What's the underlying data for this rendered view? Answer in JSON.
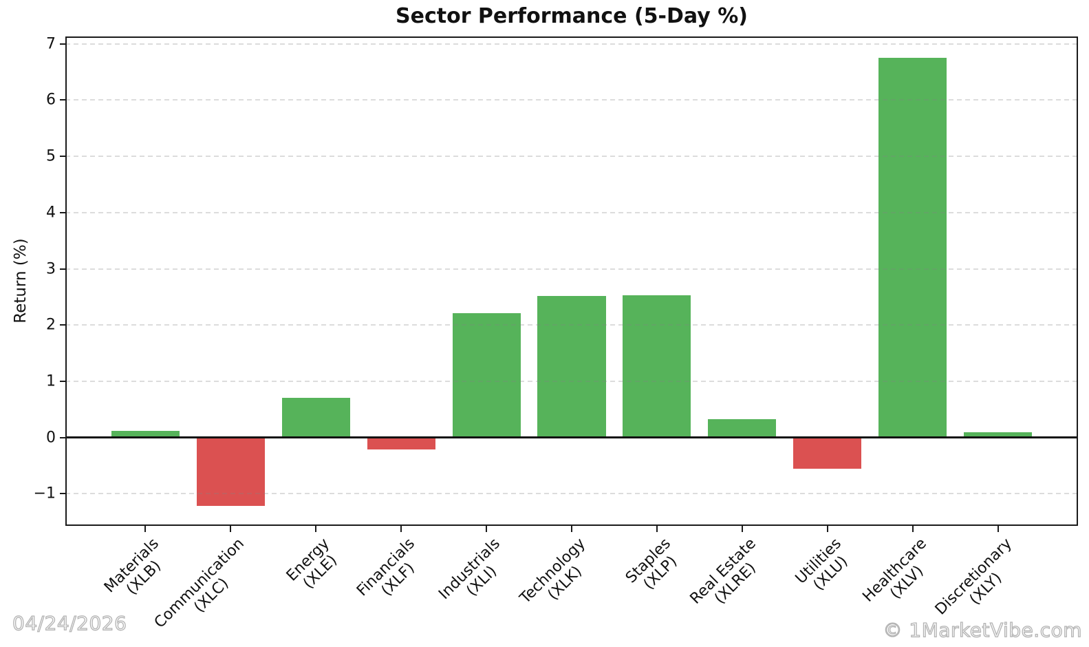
{
  "title": "Sector Performance (5-Day %)",
  "ylabel": "Return (%)",
  "footer": {
    "date": "04/24/2026",
    "credit": "© 1MarketVibe.com"
  },
  "chart_data": {
    "type": "bar",
    "title": "Sector Performance (5-Day %)",
    "xlabel": "",
    "ylabel": "Return (%)",
    "categories": [
      "Materials",
      "Communication",
      "Energy",
      "Financials",
      "Industrials",
      "Technology",
      "Staples",
      "Real Estate",
      "Utilities",
      "Healthcare",
      "Discretionary"
    ],
    "tickers": [
      "XLB",
      "XLC",
      "XLE",
      "XLF",
      "XLI",
      "XLK",
      "XLP",
      "XLRE",
      "XLU",
      "XLV",
      "XLY"
    ],
    "values": [
      0.12,
      -1.22,
      0.71,
      -0.21,
      2.21,
      2.52,
      2.53,
      0.33,
      -0.55,
      6.75,
      0.1
    ],
    "yticks": [
      7,
      6,
      5,
      4,
      3,
      2,
      1,
      0,
      -1
    ],
    "ylim": [
      -1.57,
      7.13
    ],
    "xlim": [
      -0.94,
      10.94
    ],
    "bar_width": 0.8,
    "grid": "horizontal-dashed",
    "legend": "none",
    "zero_line": true,
    "colors": {
      "positive": "#56b35a",
      "negative": "#db5151",
      "grid": "#d7d7d7",
      "axis": "#1a1a1a",
      "watermark": "#bdbdbd"
    }
  }
}
